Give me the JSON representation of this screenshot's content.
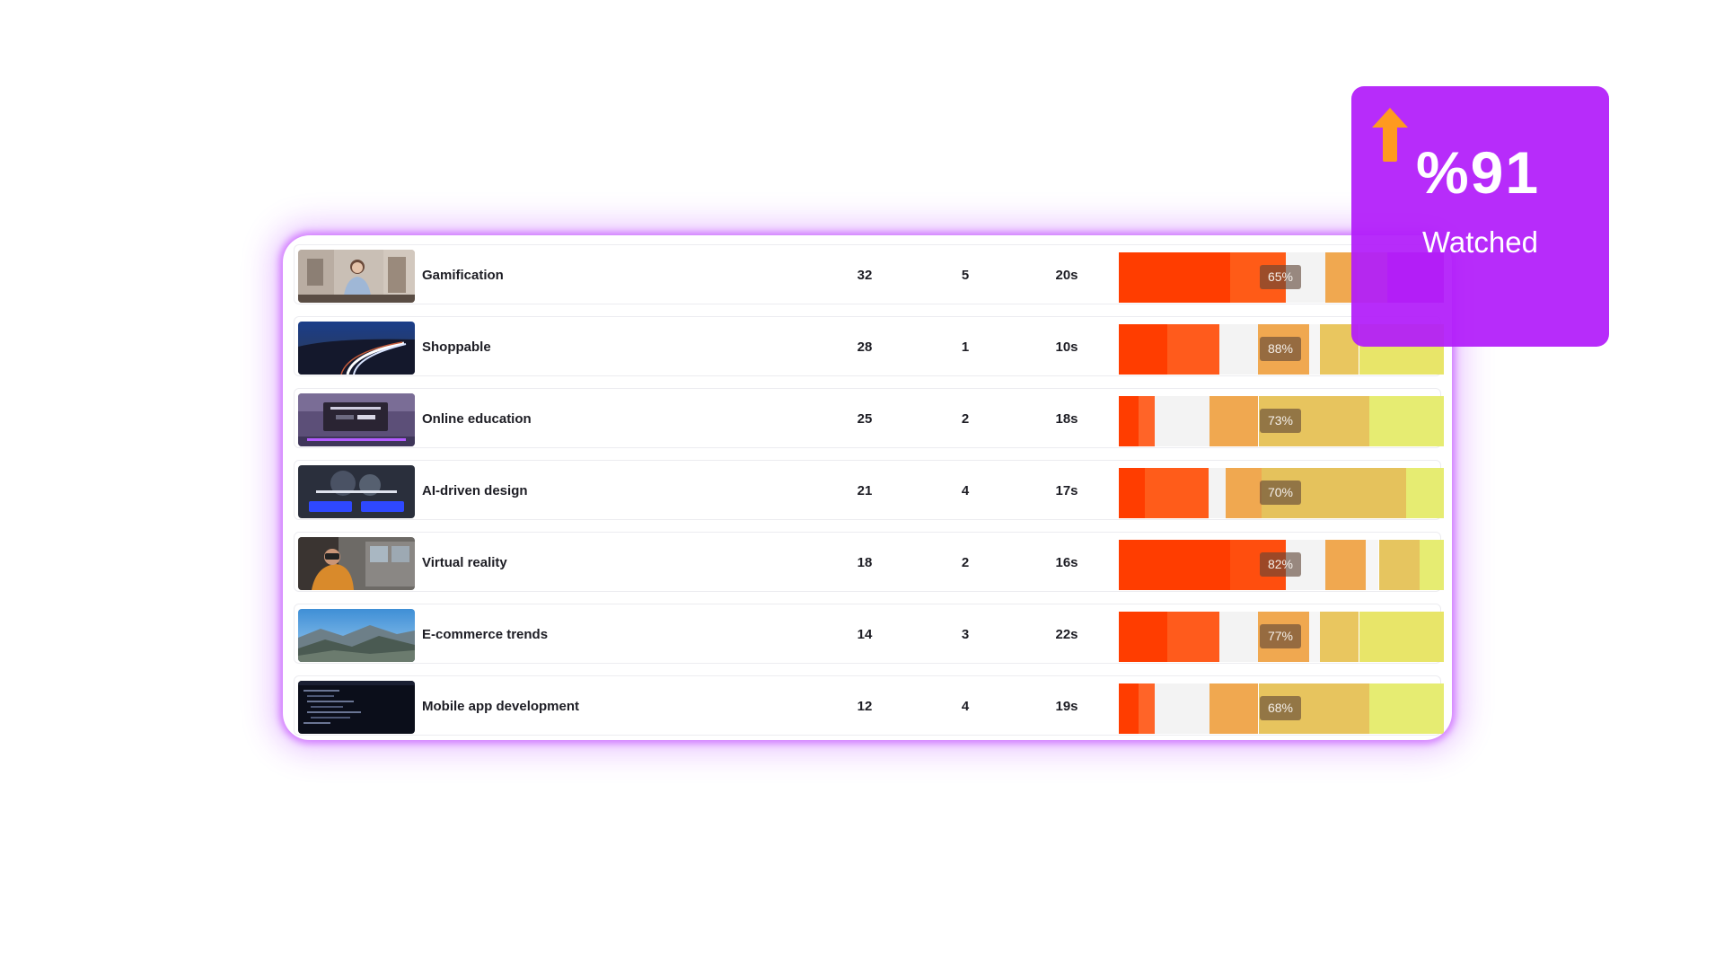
{
  "rows": [
    {
      "title": "Gamification",
      "col1": "32",
      "col2": "5",
      "col3": "20s",
      "percent": "65%",
      "percent_value": 0.65,
      "thumbnail_icon": "person-presenting-thumbnail",
      "segments": [
        [
          "#ff3d00",
          0,
          0.342
        ],
        [
          "#ff5b17",
          0.342,
          0.513
        ],
        [
          "#f3f3f3",
          0.513,
          0.635
        ],
        [
          "#f0a850",
          0.635,
          0.735
        ],
        [
          "#e4c260",
          0.735,
          0.825
        ],
        [
          "#c73fd6",
          0.825,
          1.0
        ]
      ]
    },
    {
      "title": "Shoppable",
      "col1": "28",
      "col2": "1",
      "col3": "10s",
      "percent": "88%",
      "percent_value": 0.88,
      "thumbnail_icon": "night-highway-thumbnail",
      "segments": [
        [
          "#ff3d00",
          0,
          0.15
        ],
        [
          "#ff5b1c",
          0.15,
          0.31
        ],
        [
          "#f3f3f3",
          0.31,
          0.428
        ],
        [
          "#f0a850",
          0.428,
          0.586
        ],
        [
          "#f6f6f6",
          0.586,
          0.62
        ],
        [
          "#e9c65f",
          0.62,
          0.74
        ],
        [
          "#e8e569",
          0.74,
          1.0
        ]
      ]
    },
    {
      "title": "Online education",
      "col1": "25",
      "col2": "2",
      "col3": "18s",
      "percent": "73%",
      "percent_value": 0.73,
      "thumbnail_icon": "laptop-screen-thumbnail",
      "segments": [
        [
          "#ff3d00",
          0,
          0.06
        ],
        [
          "#ff6428",
          0.06,
          0.11
        ],
        [
          "#f3f3f3",
          0.11,
          0.28
        ],
        [
          "#f0a850",
          0.28,
          0.43
        ],
        [
          "#e7c45e",
          0.43,
          0.77
        ],
        [
          "#e6ec72",
          0.77,
          1.0
        ]
      ]
    },
    {
      "title": "AI-driven design",
      "col1": "21",
      "col2": "4",
      "col3": "17s",
      "percent": "70%",
      "percent_value": 0.7,
      "thumbnail_icon": "dark-presentation-thumbnail",
      "segments": [
        [
          "#ff3d00",
          0,
          0.08
        ],
        [
          "#ff5c1a",
          0.08,
          0.275
        ],
        [
          "#f3f3f3",
          0.275,
          0.33
        ],
        [
          "#f0a850",
          0.33,
          0.44
        ],
        [
          "#e5c25c",
          0.44,
          0.885
        ],
        [
          "#e6ec72",
          0.885,
          1.0
        ]
      ]
    },
    {
      "title": "Virtual reality",
      "col1": "18",
      "col2": "2",
      "col3": "16s",
      "percent": "82%",
      "percent_value": 0.82,
      "thumbnail_icon": "vr-headset-thumbnail",
      "segments": [
        [
          "#ff3d00",
          0,
          0.342
        ],
        [
          "#ff4e0e",
          0.342,
          0.513
        ],
        [
          "#f3f3f3",
          0.513,
          0.635
        ],
        [
          "#f0a850",
          0.635,
          0.76
        ],
        [
          "#f6f6f6",
          0.76,
          0.8
        ],
        [
          "#e6c55f",
          0.8,
          0.925
        ],
        [
          "#e6ec72",
          0.925,
          1.0
        ]
      ]
    },
    {
      "title": "E-commerce trends",
      "col1": "14",
      "col2": "3",
      "col3": "22s",
      "percent": "77%",
      "percent_value": 0.77,
      "thumbnail_icon": "mountain-landscape-thumbnail",
      "segments": [
        [
          "#ff3d00",
          0,
          0.15
        ],
        [
          "#ff5b1c",
          0.15,
          0.31
        ],
        [
          "#f3f3f3",
          0.31,
          0.428
        ],
        [
          "#f0a850",
          0.428,
          0.586
        ],
        [
          "#f6f6f6",
          0.586,
          0.62
        ],
        [
          "#e9c65f",
          0.62,
          0.74
        ],
        [
          "#e8e569",
          0.74,
          1.0
        ]
      ]
    },
    {
      "title": "Mobile app development",
      "col1": "12",
      "col2": "4",
      "col3": "19s",
      "percent": "68%",
      "percent_value": 0.68,
      "thumbnail_icon": "code-editor-thumbnail",
      "segments": [
        [
          "#ff3d00",
          0,
          0.06
        ],
        [
          "#ff6428",
          0.06,
          0.11
        ],
        [
          "#f3f3f3",
          0.11,
          0.28
        ],
        [
          "#f0a850",
          0.28,
          0.43
        ],
        [
          "#e7c45e",
          0.43,
          0.77
        ],
        [
          "#e6ec72",
          0.77,
          1.0
        ]
      ]
    }
  ],
  "badge": {
    "value": "%91",
    "label": "Watched",
    "icon": "arrow-up-icon",
    "background": "#b21cfa",
    "arrow_color": "#ff9a1f"
  },
  "colors": {
    "panel_glow": "#be3cff",
    "text": "#1d1d24"
  }
}
